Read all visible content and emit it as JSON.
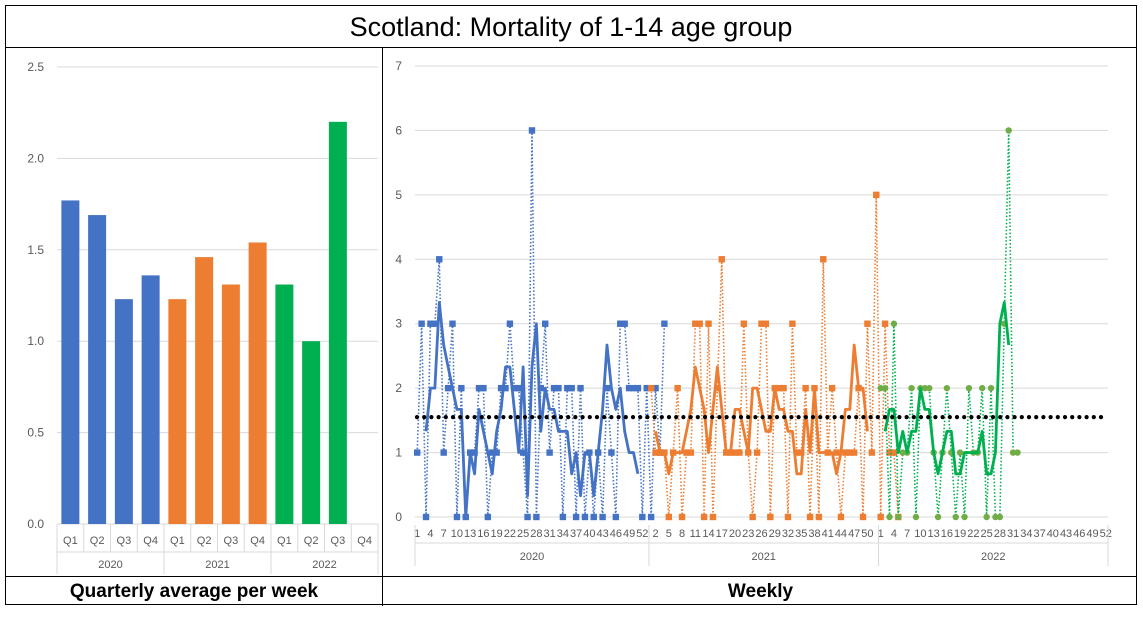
{
  "title": "Scotland: Mortality of 1-14 age group",
  "left_caption": "Quarterly average per week",
  "right_caption": "Weekly",
  "colors": {
    "2020": "#4472C4",
    "2021": "#ED7D31",
    "2022": "#00B050",
    "2022_points": "#70AD47",
    "avg": "#000000",
    "grid": "#D9D9D9",
    "axis_text": "#595959"
  },
  "chart_data": [
    {
      "type": "bar",
      "categories": [
        "Q1",
        "Q2",
        "Q3",
        "Q4",
        "Q1",
        "Q2",
        "Q3",
        "Q4",
        "Q1",
        "Q2",
        "Q3",
        "Q4"
      ],
      "groups": [
        "2020",
        "2021",
        "2022"
      ],
      "values": [
        1.77,
        1.69,
        1.23,
        1.36,
        1.23,
        1.46,
        1.31,
        1.54,
        1.31,
        1.0,
        2.2,
        null
      ],
      "yticks": [
        "0.0",
        "0.5",
        "1.0",
        "1.5",
        "2.0",
        "2.5"
      ],
      "ylim": [
        0,
        2.5
      ],
      "grid": true
    },
    {
      "type": "line",
      "groups": [
        "2020",
        "2021",
        "2022"
      ],
      "xticks": {
        "2020": [
          "1",
          "4",
          "7",
          "10",
          "13",
          "16",
          "19",
          "22",
          "25",
          "28",
          "31",
          "34",
          "37",
          "40",
          "43",
          "46",
          "49",
          "52"
        ],
        "2021": [
          "2",
          "5",
          "8",
          "11",
          "14",
          "17",
          "20",
          "23",
          "26",
          "29",
          "32",
          "35",
          "38",
          "41",
          "44",
          "47",
          "50"
        ],
        "2022": [
          "1",
          "4",
          "7",
          "10",
          "13",
          "16",
          "19",
          "22",
          "25",
          "28",
          "31",
          "34",
          "37",
          "40",
          "43",
          "46",
          "49",
          "52"
        ]
      },
      "yticks": [
        "0",
        "1",
        "2",
        "3",
        "4",
        "5",
        "6",
        "7"
      ],
      "ylim": [
        0,
        7
      ],
      "average": 1.55,
      "series": [
        {
          "group": "2020",
          "style": "dotted-markers",
          "values": [
            1,
            3,
            0,
            3,
            3,
            4,
            1,
            2,
            3,
            0,
            2,
            0,
            1,
            1,
            2,
            2,
            0,
            1,
            1,
            2,
            2,
            3,
            2,
            2,
            1,
            0,
            6,
            0,
            2,
            3,
            1,
            2,
            2,
            0,
            2,
            2,
            0,
            2,
            0,
            1,
            0,
            1,
            0,
            2,
            1,
            0,
            3,
            3,
            2,
            2,
            2,
            0,
            2,
            0,
            2,
            1,
            3
          ]
        },
        {
          "group": "2020",
          "style": "moving-average",
          "values": [
            null,
            null,
            1.33,
            2,
            2,
            3.33,
            2.67,
            2.33,
            2,
            1.67,
            1.67,
            0,
            1,
            0.67,
            1.67,
            1.33,
            1,
            0.67,
            1.33,
            1.67,
            2.33,
            2.33,
            1.67,
            1,
            2.33,
            0.33,
            2.33,
            3,
            1.33,
            2,
            1.67,
            1.67,
            1.33,
            1.33,
            1.33,
            0.67,
            1,
            0.33,
            1,
            1,
            0.33,
            1,
            1.67,
            2.67,
            2,
            1.67,
            2,
            1.33,
            1,
            1,
            0.67
          ]
        },
        {
          "group": "2021",
          "style": "dotted-markers",
          "values": [
            2,
            1,
            1,
            1,
            0,
            1,
            2,
            0,
            1,
            1,
            3,
            3,
            0,
            3,
            0,
            2,
            4,
            1,
            1,
            1,
            1,
            3,
            1,
            0,
            1,
            3,
            3,
            0,
            2,
            2,
            2,
            0,
            3,
            1,
            1,
            2,
            0,
            2,
            0,
            4,
            1,
            2,
            1,
            0,
            1,
            1,
            1,
            2,
            0,
            3,
            1,
            5,
            0,
            3,
            1,
            1,
            0
          ]
        },
        {
          "group": "2021",
          "style": "moving-average",
          "values": [
            null,
            1.33,
            1,
            1,
            0.67,
            1,
            1,
            1,
            1.33,
            1.67,
            2.33,
            2,
            1.67,
            1,
            1.67,
            2.33,
            1.67,
            1,
            1,
            1.67,
            1.67,
            1.33,
            1,
            2,
            2,
            1.67,
            1.33,
            1.33,
            2,
            1.67,
            1.67,
            1.33,
            1.33,
            0.67,
            0.67,
            1.67,
            1,
            2,
            1,
            1,
            1,
            1,
            0.67,
            1,
            1.67,
            1.67,
            2.67,
            2,
            2,
            1.33
          ]
        },
        {
          "group": "2022",
          "style": "dotted-markers",
          "values": [
            2,
            2,
            0,
            3,
            0,
            1,
            1,
            2,
            0,
            2,
            2,
            2,
            1,
            0,
            1,
            2,
            1,
            0,
            1,
            0,
            2,
            1,
            1,
            2,
            0,
            2,
            0,
            0,
            3,
            6,
            1,
            1
          ]
        },
        {
          "group": "2022",
          "style": "moving-average",
          "values": [
            null,
            1.33,
            1.67,
            1.67,
            1,
            1.33,
            1,
            1.33,
            1.33,
            2,
            1.67,
            1.67,
            1,
            0.67,
            1,
            1.33,
            1.33,
            0.67,
            0.67,
            1,
            1,
            1,
            1,
            1.33,
            0.67,
            0.67,
            1,
            3,
            3.33,
            2.67
          ]
        }
      ],
      "grid": true
    }
  ]
}
